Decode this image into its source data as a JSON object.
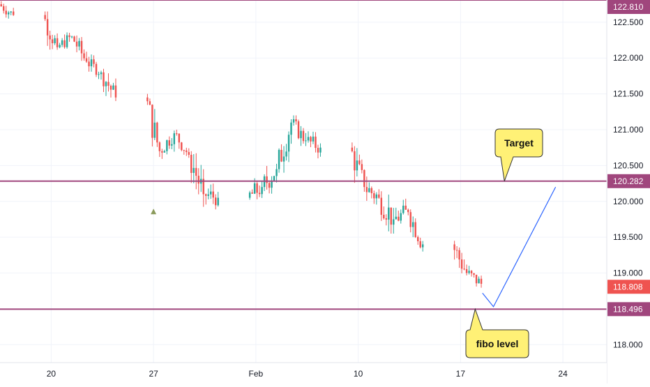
{
  "chart_data": {
    "type": "candlestick",
    "symbol_axis": {
      "ticks": [
        "118.000",
        "118.500",
        "119.000",
        "119.500",
        "120.000",
        "120.500",
        "121.000",
        "121.500",
        "122.000",
        "122.500"
      ],
      "tick_values": [
        118.0,
        118.5,
        119.0,
        119.5,
        120.0,
        120.5,
        121.0,
        121.5,
        122.0,
        122.5
      ],
      "range": [
        117.75,
        122.81
      ]
    },
    "x_axis": {
      "range_days": [
        "2020-01-17",
        "2020-02-27"
      ],
      "ticks": [
        {
          "label": "20",
          "date": "2020-01-20"
        },
        {
          "label": "27",
          "date": "2020-01-27"
        },
        {
          "label": "Feb",
          "date": "2020-02-03"
        },
        {
          "label": "10",
          "date": "2020-02-10"
        },
        {
          "label": "17",
          "date": "2020-02-17"
        },
        {
          "label": "24",
          "date": "2020-02-24"
        }
      ]
    },
    "levels": [
      {
        "value": 122.81,
        "label": "122.810"
      },
      {
        "value": 120.282,
        "label": "120.282"
      },
      {
        "value": 118.496,
        "label": "118.496"
      }
    ],
    "last_price": {
      "value": 118.808,
      "label": "118.808"
    },
    "colors": {
      "up": "#26a69a",
      "down": "#ef5350",
      "level": "#a0467d",
      "projection": "#2962ff",
      "callout": "#fff176",
      "marker": "#8a9a5b"
    },
    "annotations": [
      {
        "text": "Target"
      },
      {
        "text": "fibo level"
      }
    ],
    "projection": [
      {
        "date": "2020-02-18T12:00",
        "price": 118.72
      },
      {
        "date": "2020-02-19T06:00",
        "price": 118.53
      },
      {
        "date": "2020-02-23T12:00",
        "price": 120.2
      }
    ],
    "marker": {
      "date": "2020-01-27",
      "price": 119.85,
      "shape": "triangle-up"
    },
    "ohlc_daily": [
      {
        "date": "2020-01-17",
        "o": 122.75,
        "h": 122.86,
        "l": 122.55,
        "c": 122.6
      },
      {
        "date": "2020-01-20",
        "o": 122.6,
        "h": 122.65,
        "l": 122.05,
        "c": 122.15
      },
      {
        "date": "2020-01-21",
        "o": 122.15,
        "h": 122.4,
        "l": 122.05,
        "c": 122.3
      },
      {
        "date": "2020-01-22",
        "o": 122.3,
        "h": 122.4,
        "l": 121.9,
        "c": 121.95
      },
      {
        "date": "2020-01-23",
        "o": 121.95,
        "h": 122.05,
        "l": 121.7,
        "c": 121.8
      },
      {
        "date": "2020-01-24",
        "o": 121.8,
        "h": 121.95,
        "l": 121.4,
        "c": 121.45
      },
      {
        "date": "2020-01-27",
        "o": 121.45,
        "h": 121.5,
        "l": 120.6,
        "c": 120.7
      },
      {
        "date": "2020-01-28",
        "o": 120.7,
        "h": 121.0,
        "l": 120.55,
        "c": 120.95
      },
      {
        "date": "2020-01-29",
        "o": 120.95,
        "h": 121.0,
        "l": 120.6,
        "c": 120.65
      },
      {
        "date": "2020-01-30",
        "o": 120.65,
        "h": 120.7,
        "l": 119.85,
        "c": 120.1
      },
      {
        "date": "2020-01-31",
        "o": 120.1,
        "h": 120.35,
        "l": 119.85,
        "c": 120.05
      },
      {
        "date": "2020-02-03",
        "o": 120.05,
        "h": 120.4,
        "l": 119.85,
        "c": 120.2
      },
      {
        "date": "2020-02-04",
        "o": 120.2,
        "h": 120.6,
        "l": 119.95,
        "c": 120.45
      },
      {
        "date": "2020-02-05",
        "o": 120.45,
        "h": 121.2,
        "l": 120.4,
        "c": 121.1
      },
      {
        "date": "2020-02-06",
        "o": 121.1,
        "h": 121.2,
        "l": 120.75,
        "c": 120.85
      },
      {
        "date": "2020-02-07",
        "o": 120.85,
        "h": 121.05,
        "l": 120.6,
        "c": 120.75
      },
      {
        "date": "2020-02-10",
        "o": 120.75,
        "h": 120.85,
        "l": 120.1,
        "c": 120.2
      },
      {
        "date": "2020-02-11",
        "o": 120.2,
        "h": 120.45,
        "l": 119.85,
        "c": 120.05
      },
      {
        "date": "2020-02-12",
        "o": 120.05,
        "h": 120.3,
        "l": 119.55,
        "c": 119.75
      },
      {
        "date": "2020-02-13",
        "o": 119.75,
        "h": 120.15,
        "l": 119.6,
        "c": 119.85
      },
      {
        "date": "2020-02-14",
        "o": 119.85,
        "h": 119.9,
        "l": 119.3,
        "c": 119.4
      },
      {
        "date": "2020-02-17",
        "o": 119.4,
        "h": 119.45,
        "l": 118.85,
        "c": 119.0
      },
      {
        "date": "2020-02-18",
        "o": 119.0,
        "h": 119.15,
        "l": 118.75,
        "c": 118.85
      }
    ]
  }
}
